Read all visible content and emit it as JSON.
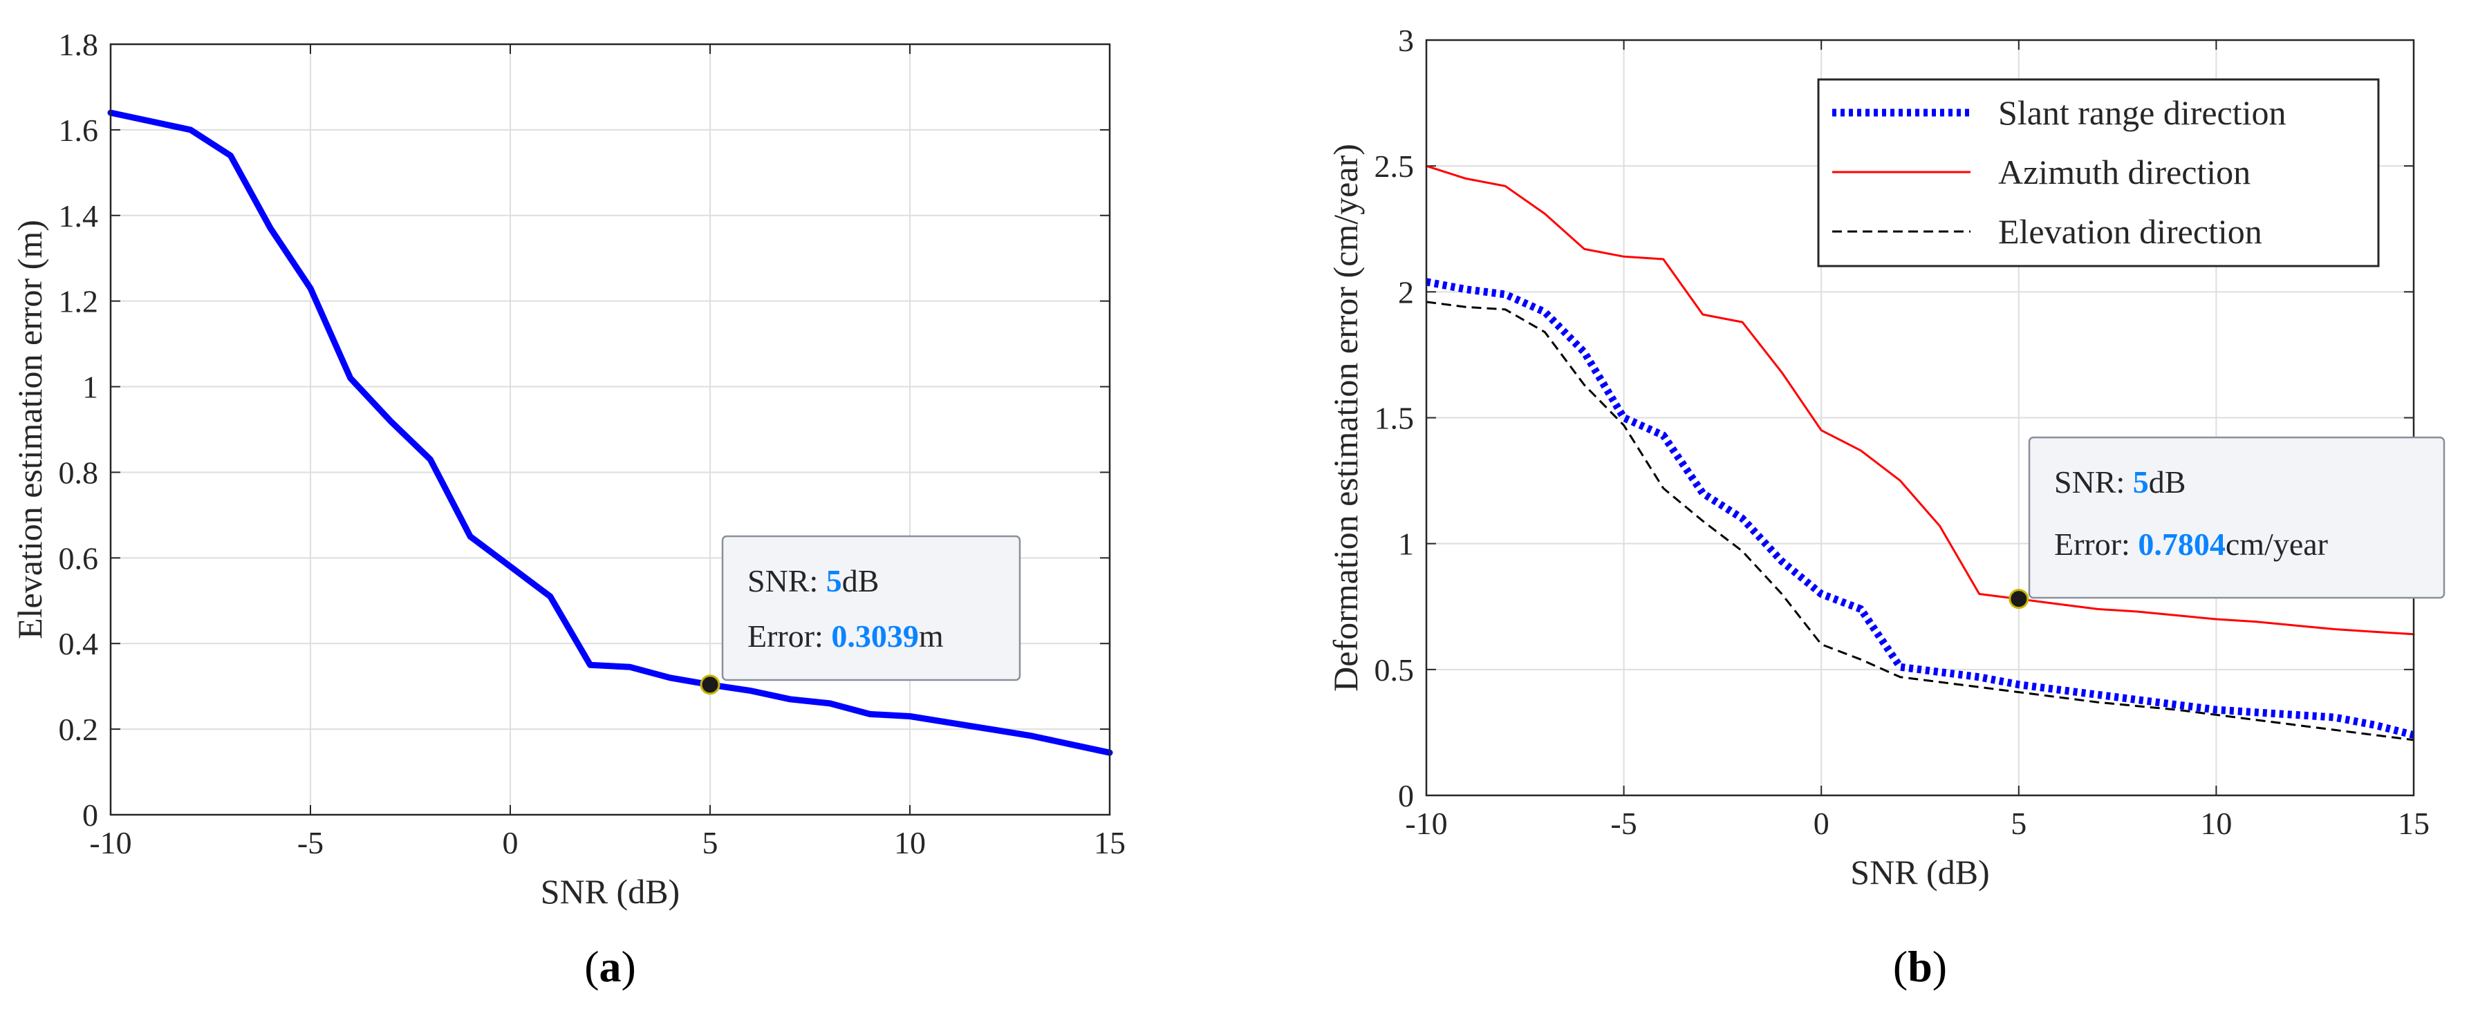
{
  "colors": {
    "blue": "#0000ff",
    "red": "#ff0000",
    "black": "#000000",
    "highlight": "#0a84ff",
    "grid": "#dedede"
  },
  "chart_data": [
    {
      "type": "line",
      "panel": "a",
      "caption": {
        "open": "(",
        "letter": "a",
        "close": ")"
      },
      "xlabel": "SNR (dB)",
      "ylabel": "Elevation estimation error (m)",
      "xlim": [
        -10,
        15
      ],
      "ylim": [
        0,
        1.8
      ],
      "xticks": [
        "-10",
        "-5",
        "0",
        "5",
        "10",
        "15"
      ],
      "yticks": [
        "0",
        "0.2",
        "0.4",
        "0.6",
        "0.8",
        "1",
        "1.2",
        "1.4",
        "1.6",
        "1.8"
      ],
      "grid": true,
      "series": [
        {
          "name": "Elevation estimation error",
          "style": "solid-thick",
          "color": "#0000ff",
          "x": [
            -10,
            -9,
            -8,
            -7,
            -6,
            -5,
            -4,
            -3,
            -2,
            -1,
            0,
            1,
            2,
            3,
            4,
            5,
            6,
            7,
            8,
            9,
            10,
            11,
            12,
            13,
            14,
            15
          ],
          "y": [
            1.64,
            1.62,
            1.6,
            1.54,
            1.37,
            1.23,
            1.02,
            0.92,
            0.83,
            0.65,
            0.58,
            0.51,
            0.35,
            0.345,
            0.32,
            0.3039,
            0.29,
            0.27,
            0.26,
            0.235,
            0.23,
            0.215,
            0.2,
            0.185,
            0.165,
            0.145
          ]
        }
      ],
      "datatip": {
        "x": 5,
        "y": 0.3039,
        "line1_prefix": "SNR: ",
        "line1_value": "5",
        "line1_suffix": "dB",
        "line2_prefix": "Error: ",
        "line2_value": "0.3039",
        "line2_suffix": "m"
      }
    },
    {
      "type": "line",
      "panel": "b",
      "caption": {
        "open": "(",
        "letter": "b",
        "close": ")"
      },
      "xlabel": "SNR (dB)",
      "ylabel": "Deformation estimation error (cm/year)",
      "xlim": [
        -10,
        15
      ],
      "ylim": [
        0,
        3
      ],
      "xticks": [
        "-10",
        "-5",
        "0",
        "5",
        "10",
        "15"
      ],
      "yticks": [
        "0",
        "0.5",
        "1",
        "1.5",
        "2",
        "2.5",
        "3"
      ],
      "grid": true,
      "legend_position": "top-right",
      "series": [
        {
          "name": "Slant range direction",
          "style": "dotted-thick",
          "color": "#0000ff",
          "x": [
            -10,
            -9,
            -8,
            -7,
            -6,
            -5,
            -4,
            -3,
            -2,
            -1,
            0,
            1,
            2,
            3,
            4,
            5,
            6,
            7,
            8,
            9,
            10,
            11,
            12,
            13,
            14,
            15
          ],
          "y": [
            2.04,
            2.01,
            1.99,
            1.92,
            1.76,
            1.5,
            1.43,
            1.2,
            1.1,
            0.93,
            0.8,
            0.74,
            0.51,
            0.49,
            0.47,
            0.44,
            0.42,
            0.4,
            0.38,
            0.36,
            0.34,
            0.33,
            0.32,
            0.31,
            0.28,
            0.24
          ]
        },
        {
          "name": "Azimuth direction",
          "style": "solid-thin",
          "color": "#ff0000",
          "x": [
            -10,
            -9,
            -8,
            -7,
            -6,
            -5,
            -4,
            -3,
            -2,
            -1,
            0,
            1,
            2,
            3,
            4,
            5,
            6,
            7,
            8,
            9,
            10,
            11,
            12,
            13,
            14,
            15
          ],
          "y": [
            2.5,
            2.45,
            2.42,
            2.31,
            2.17,
            2.14,
            2.13,
            1.91,
            1.88,
            1.68,
            1.45,
            1.37,
            1.25,
            1.07,
            0.8,
            0.7804,
            0.76,
            0.74,
            0.73,
            0.715,
            0.7,
            0.69,
            0.675,
            0.66,
            0.65,
            0.64
          ]
        },
        {
          "name": "Elevation direction",
          "style": "dashed-thin",
          "color": "#000000",
          "x": [
            -10,
            -9,
            -8,
            -7,
            -6,
            -5,
            -4,
            -3,
            -2,
            -1,
            0,
            1,
            2,
            3,
            4,
            5,
            6,
            7,
            8,
            9,
            10,
            11,
            12,
            13,
            14,
            15
          ],
          "y": [
            1.96,
            1.94,
            1.93,
            1.84,
            1.63,
            1.47,
            1.22,
            1.09,
            0.97,
            0.8,
            0.6,
            0.54,
            0.47,
            0.45,
            0.43,
            0.41,
            0.39,
            0.37,
            0.355,
            0.34,
            0.32,
            0.3,
            0.28,
            0.26,
            0.24,
            0.22
          ]
        }
      ],
      "datatip": {
        "x": 5,
        "y": 0.7804,
        "line1_prefix": "SNR: ",
        "line1_value": "5",
        "line1_suffix": "dB",
        "line2_prefix": "Error: ",
        "line2_value": "0.7804",
        "line2_suffix": "cm/year"
      }
    }
  ]
}
